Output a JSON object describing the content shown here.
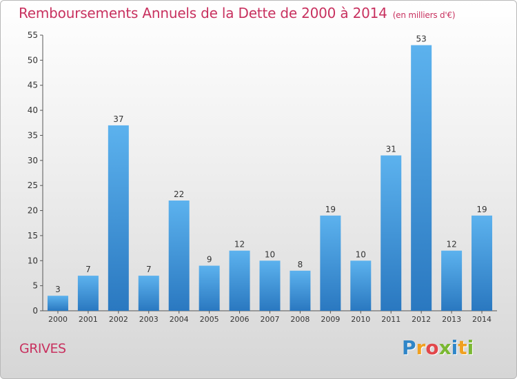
{
  "chart_data": {
    "type": "bar",
    "title": "Remboursements Annuels de la Dette de 2000 à 2014",
    "unit": "(en milliers d'€)",
    "categories": [
      "2000",
      "2001",
      "2002",
      "2003",
      "2004",
      "2005",
      "2006",
      "2007",
      "2008",
      "2009",
      "2010",
      "2011",
      "2012",
      "2013",
      "2014"
    ],
    "values": [
      3,
      7,
      37,
      7,
      22,
      9,
      12,
      10,
      8,
      19,
      10,
      31,
      53,
      12,
      19
    ],
    "ylim": [
      0,
      55
    ],
    "yticks": [
      0,
      5,
      10,
      15,
      20,
      25,
      30,
      35,
      40,
      45,
      50,
      55
    ],
    "grid": false,
    "bar_color": "#3f95d8"
  },
  "footer": {
    "town": "GRIVES",
    "logo_letters": [
      {
        "ch": "P",
        "color": "#2f86c8"
      },
      {
        "ch": "r",
        "color": "#f0a020"
      },
      {
        "ch": "o",
        "color": "#e2474b"
      },
      {
        "ch": "x",
        "color": "#7ab832"
      },
      {
        "ch": "i",
        "color": "#2f86c8"
      },
      {
        "ch": "t",
        "color": "#f0a020"
      },
      {
        "ch": "i",
        "color": "#7ab832"
      }
    ]
  }
}
